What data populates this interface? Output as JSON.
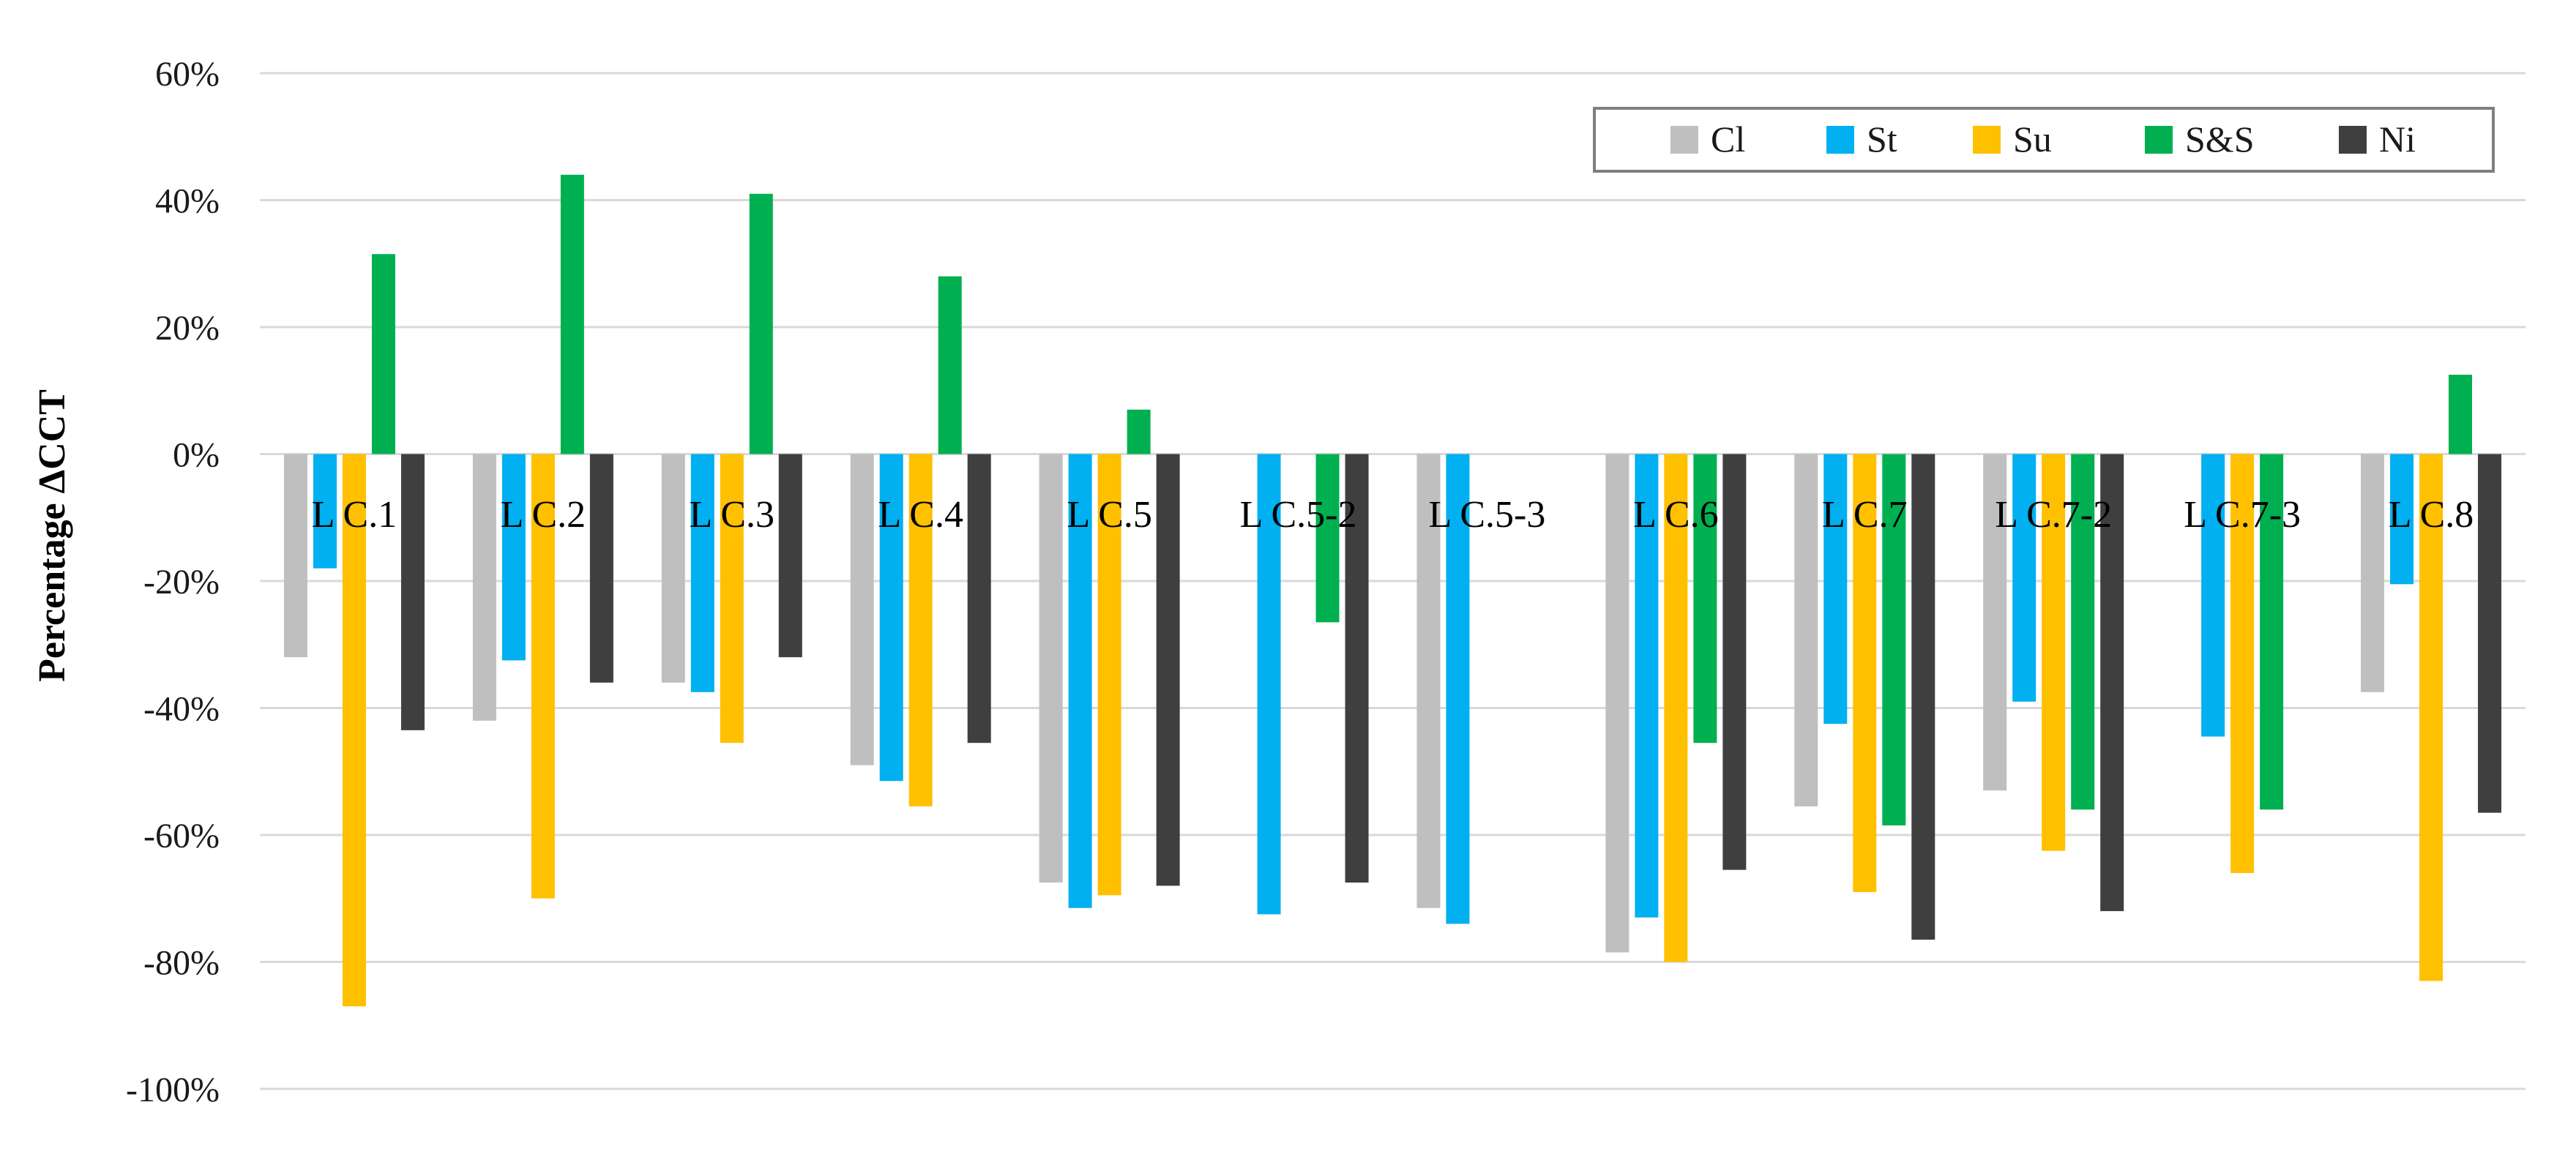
{
  "chart_data": {
    "type": "bar",
    "title": "",
    "xlabel": "",
    "ylabel": "Percentage ΔCCT",
    "ylim": [
      -1.0,
      0.6
    ],
    "y_ticks": [
      0.6,
      0.4,
      0.2,
      0.0,
      -0.2,
      -0.4,
      -0.6,
      -0.8,
      -1.0
    ],
    "y_tick_labels": [
      "60%",
      "40%",
      "20%",
      "0%",
      "-20%",
      "-40%",
      "-60%",
      "-80%",
      "-100%"
    ],
    "grid": true,
    "legend_position": "top-right",
    "categories": [
      "L C.1",
      "L C.2",
      "L C.3",
      "L C.4",
      "L C.5",
      "L C.5-2",
      "L C.5-3",
      "L C.6",
      "L C.7",
      "L C.7-2",
      "L C.7-3",
      "L C.8"
    ],
    "series": [
      {
        "name": "Cl",
        "color": "#bfbfbf",
        "values": [
          -0.32,
          -0.42,
          -0.36,
          -0.49,
          -0.675,
          null,
          -0.715,
          -0.785,
          -0.555,
          -0.53,
          null,
          -0.375
        ]
      },
      {
        "name": "St",
        "color": "#00b0f0",
        "values": [
          -0.18,
          -0.325,
          -0.375,
          -0.515,
          -0.715,
          -0.725,
          -0.74,
          -0.73,
          -0.425,
          -0.39,
          -0.445,
          -0.205
        ]
      },
      {
        "name": "Su",
        "color": "#ffc000",
        "values": [
          -0.87,
          -0.7,
          -0.455,
          -0.555,
          -0.695,
          null,
          null,
          -0.8,
          -0.69,
          -0.625,
          -0.66,
          -0.83
        ]
      },
      {
        "name": "S&S",
        "color": "#00b050",
        "values": [
          0.315,
          0.44,
          0.41,
          0.28,
          0.07,
          -0.265,
          null,
          -0.455,
          -0.585,
          -0.56,
          -0.56,
          0.125
        ]
      },
      {
        "name": "Ni",
        "color": "#3f3f3f",
        "values": [
          -0.435,
          -0.36,
          -0.32,
          -0.455,
          -0.68,
          -0.675,
          null,
          -0.655,
          -0.765,
          -0.72,
          null,
          -0.565
        ]
      }
    ]
  }
}
